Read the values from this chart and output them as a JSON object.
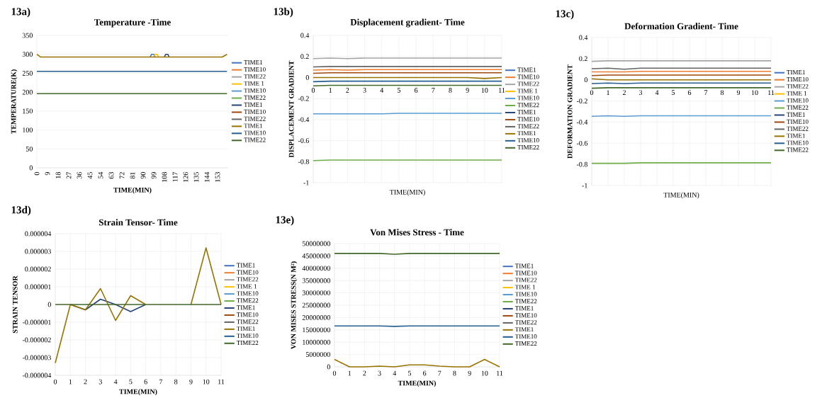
{
  "chart_data": [
    {
      "type": "line",
      "title": "Temperature -Time",
      "xlabel": "TIME(MIN)",
      "ylabel": "TEMPERATURE(K)",
      "annotations": [
        "13a)"
      ],
      "xlim": [
        0,
        162
      ],
      "xticks": [
        0,
        9,
        18,
        27,
        36,
        45,
        54,
        63,
        72,
        81,
        90,
        99,
        108,
        117,
        126,
        135,
        144,
        153
      ],
      "ylim": [
        0,
        350
      ],
      "yticks": [
        0,
        50,
        100,
        150,
        200,
        250,
        300,
        350
      ],
      "grid": "y",
      "legend": "right",
      "series": [
        {
          "name": "TIME1",
          "color": "#4472c4",
          "x": [
            96,
            97,
            99,
            100
          ],
          "values": [
            293,
            300,
            300,
            293
          ]
        },
        {
          "name": "TIME10",
          "color": "#ed7d31",
          "values": [
            null
          ]
        },
        {
          "name": "TIME22",
          "color": "#a5a5a5",
          "values": [
            null
          ]
        },
        {
          "name": "TIME 1",
          "color": "#ffc000",
          "x": [
            99,
            100,
            102,
            103
          ],
          "values": [
            293,
            300,
            300,
            293
          ]
        },
        {
          "name": "TIME10",
          "color": "#5b9bd5",
          "values": [
            null
          ]
        },
        {
          "name": "TIME22",
          "color": "#70ad47",
          "values": [
            null
          ]
        },
        {
          "name": "TIME1",
          "color": "#264478",
          "x": [
            108,
            109,
            111,
            112
          ],
          "values": [
            293,
            300,
            300,
            293
          ]
        },
        {
          "name": "TIME10",
          "color": "#9e480e",
          "values": [
            null
          ]
        },
        {
          "name": "TIME22",
          "color": "#636363",
          "values": [
            null
          ]
        },
        {
          "name": "TIME1",
          "color": "#997300",
          "x": [
            0,
            3,
            157,
            161
          ],
          "values": [
            300,
            293,
            293,
            300
          ]
        },
        {
          "name": "TIME10",
          "color": "#255e91",
          "x": [
            0,
            161
          ],
          "values": [
            255,
            255
          ]
        },
        {
          "name": "TIME22",
          "color": "#43682b",
          "x": [
            0,
            161
          ],
          "values": [
            196,
            196
          ]
        }
      ]
    },
    {
      "type": "line",
      "title": "Displacement gradient- Time",
      "xlabel": "TIME(MIN)",
      "ylabel": "DISPLACEMENT GRADIENT",
      "annotations": [
        "13b)"
      ],
      "categories": [
        "0",
        "1",
        "2",
        "3",
        "4",
        "5",
        "6",
        "7",
        "8",
        "9",
        "10",
        "11"
      ],
      "ylim": [
        -1,
        0.4
      ],
      "yticks": [
        -1,
        -0.8,
        -0.6,
        -0.4,
        -0.2,
        0,
        0.2,
        0.4
      ],
      "grid": true,
      "legend": "right",
      "series": [
        {
          "name": "TIME1",
          "color": "#4472c4",
          "values": [
            null,
            null,
            null,
            null,
            null,
            null,
            null,
            null,
            null,
            null,
            null,
            null
          ]
        },
        {
          "name": "TIME10",
          "color": "#ed7d31",
          "values": [
            0.07,
            0.075,
            0.07,
            0.075,
            0.075,
            0.075,
            0.075,
            0.075,
            0.075,
            0.075,
            0.075,
            0.075
          ]
        },
        {
          "name": "TIME22",
          "color": "#a5a5a5",
          "values": [
            0.18,
            0.185,
            0.18,
            0.185,
            0.185,
            0.185,
            0.185,
            0.185,
            0.185,
            0.185,
            0.185,
            0.185
          ]
        },
        {
          "name": "TIME 1",
          "color": "#ffc000",
          "values": [
            null,
            null,
            null,
            null,
            null,
            null,
            null,
            null,
            null,
            null,
            null,
            null
          ]
        },
        {
          "name": "TIME10",
          "color": "#5b9bd5",
          "values": [
            -0.345,
            -0.345,
            -0.345,
            -0.345,
            -0.345,
            -0.34,
            -0.34,
            -0.34,
            -0.34,
            -0.34,
            -0.34,
            -0.34
          ]
        },
        {
          "name": "TIME22",
          "color": "#70ad47",
          "values": [
            -0.79,
            -0.785,
            -0.785,
            -0.785,
            -0.785,
            -0.785,
            -0.785,
            -0.785,
            -0.785,
            -0.785,
            -0.785,
            -0.785
          ]
        },
        {
          "name": "TIME1",
          "color": "#264478",
          "values": [
            null,
            null,
            null,
            null,
            null,
            null,
            null,
            null,
            null,
            null,
            null,
            null
          ]
        },
        {
          "name": "TIME10",
          "color": "#9e480e",
          "values": [
            0.04,
            0.045,
            0.045,
            0.045,
            0.045,
            0.045,
            0.045,
            0.045,
            0.045,
            0.045,
            0.045,
            0.045
          ]
        },
        {
          "name": "TIME22",
          "color": "#636363",
          "values": [
            0.1,
            0.105,
            0.105,
            0.105,
            0.105,
            0.105,
            0.105,
            0.105,
            0.105,
            0.105,
            0.105,
            0.105
          ]
        },
        {
          "name": "TIME1",
          "color": "#997300",
          "values": [
            0,
            0,
            0,
            0,
            0,
            0,
            0,
            0,
            0,
            0,
            -0.01,
            0
          ]
        },
        {
          "name": "TIME10",
          "color": "#255e91",
          "values": [
            -0.04,
            -0.035,
            -0.035,
            -0.035,
            -0.035,
            -0.035,
            -0.035,
            -0.035,
            -0.035,
            -0.035,
            -0.035,
            -0.035
          ]
        },
        {
          "name": "TIME22",
          "color": "#43682b",
          "values": [
            -0.08,
            -0.075,
            -0.075,
            -0.075,
            -0.075,
            -0.075,
            -0.075,
            -0.075,
            -0.075,
            -0.075,
            -0.075,
            -0.075
          ]
        }
      ]
    },
    {
      "type": "line",
      "title": "Deformation Gradient- Time",
      "xlabel": "TIME(MIN)",
      "ylabel": "DEFORMATION GRADIENT",
      "annotations": [
        "13c)"
      ],
      "categories": [
        "0",
        "1",
        "2",
        "3",
        "4",
        "5",
        "6",
        "7",
        "8",
        "9",
        "10",
        "11"
      ],
      "ylim": [
        -1,
        0.4
      ],
      "yticks": [
        -1,
        -0.8,
        -0.6,
        -0.4,
        -0.2,
        0,
        0.2,
        0.4
      ],
      "grid": true,
      "legend": "right",
      "series": [
        {
          "name": "TIME1",
          "color": "#4472c4",
          "values": [
            null,
            null,
            null,
            null,
            null,
            null,
            null,
            null,
            null,
            null,
            null,
            null
          ]
        },
        {
          "name": "TIME10",
          "color": "#ed7d31",
          "values": [
            0.075,
            0.075,
            0.075,
            0.08,
            0.08,
            0.08,
            0.08,
            0.08,
            0.08,
            0.08,
            0.08,
            0.08
          ]
        },
        {
          "name": "TIME22",
          "color": "#a5a5a5",
          "values": [
            0.175,
            0.18,
            0.18,
            0.18,
            0.18,
            0.18,
            0.18,
            0.18,
            0.18,
            0.18,
            0.18,
            0.18
          ]
        },
        {
          "name": "TIME 1",
          "color": "#ffc000",
          "values": [
            null,
            null,
            null,
            null,
            null,
            null,
            null,
            null,
            null,
            null,
            null,
            null
          ]
        },
        {
          "name": "TIME10",
          "color": "#5b9bd5",
          "values": [
            -0.345,
            -0.34,
            -0.345,
            -0.34,
            -0.34,
            -0.34,
            -0.34,
            -0.34,
            -0.34,
            -0.34,
            -0.34,
            -0.34
          ]
        },
        {
          "name": "TIME22",
          "color": "#70ad47",
          "values": [
            -0.79,
            -0.79,
            -0.79,
            -0.785,
            -0.785,
            -0.785,
            -0.785,
            -0.785,
            -0.785,
            -0.785,
            -0.785,
            -0.785
          ]
        },
        {
          "name": "TIME1",
          "color": "#264478",
          "values": [
            null,
            null,
            null,
            null,
            null,
            null,
            null,
            null,
            null,
            null,
            null,
            null
          ]
        },
        {
          "name": "TIME10",
          "color": "#9e480e",
          "values": [
            0.04,
            0.045,
            0.045,
            0.045,
            0.045,
            0.045,
            0.045,
            0.045,
            0.045,
            0.045,
            0.045,
            0.045
          ]
        },
        {
          "name": "TIME22",
          "color": "#636363",
          "values": [
            0.105,
            0.11,
            0.1,
            0.11,
            0.11,
            0.11,
            0.11,
            0.11,
            0.11,
            0.11,
            0.11,
            0.11
          ]
        },
        {
          "name": "TIME1",
          "color": "#997300",
          "values": [
            0.01,
            0,
            0,
            0,
            0,
            0,
            0,
            0,
            0,
            0,
            0,
            0
          ]
        },
        {
          "name": "TIME10",
          "color": "#255e91",
          "values": [
            -0.035,
            -0.03,
            -0.035,
            -0.03,
            -0.03,
            -0.03,
            -0.03,
            -0.03,
            -0.03,
            -0.03,
            -0.03,
            -0.03
          ]
        },
        {
          "name": "TIME22",
          "color": "#43682b",
          "values": [
            -0.08,
            -0.075,
            -0.075,
            -0.075,
            -0.075,
            -0.075,
            -0.075,
            -0.075,
            -0.075,
            -0.075,
            -0.075,
            -0.075
          ]
        }
      ]
    },
    {
      "type": "line",
      "title": "Strain Tensor- Time",
      "xlabel": "TIME(MIN)",
      "ylabel": "STRAIN TENSOR",
      "annotations": [
        "13d)"
      ],
      "categories": [
        "0",
        "1",
        "2",
        "3",
        "4",
        "5",
        "6",
        "7",
        "8",
        "9",
        "10",
        "11"
      ],
      "ylim": [
        -4e-06,
        4e-06
      ],
      "yticks": [
        {
          "value": -4e-06,
          "label": "-0.000004"
        },
        {
          "value": -3e-06,
          "label": "-0.000003"
        },
        {
          "value": -2e-06,
          "label": "-0.000002"
        },
        {
          "value": -1e-06,
          "label": "-0.000001"
        },
        {
          "value": 0,
          "label": "0"
        },
        {
          "value": 1e-06,
          "label": "0.000001"
        },
        {
          "value": 2e-06,
          "label": "0.000002"
        },
        {
          "value": 3e-06,
          "label": "0.000003"
        },
        {
          "value": 4e-06,
          "label": "0.000004"
        }
      ],
      "grid": true,
      "legend": "right",
      "series": [
        {
          "name": "TIME1",
          "color": "#4472c4",
          "values": [
            null,
            null,
            null,
            null,
            null,
            null,
            null,
            null,
            null,
            null,
            null,
            null
          ]
        },
        {
          "name": "TIME10",
          "color": "#ed7d31",
          "values": [
            null,
            null,
            null,
            null,
            null,
            null,
            null,
            null,
            null,
            null,
            null,
            null
          ]
        },
        {
          "name": "TIME22",
          "color": "#a5a5a5",
          "values": [
            null,
            null,
            null,
            null,
            null,
            null,
            null,
            null,
            null,
            null,
            null,
            null
          ]
        },
        {
          "name": "TIME 1",
          "color": "#ffc000",
          "values": [
            null,
            null,
            null,
            null,
            null,
            null,
            null,
            null,
            null,
            null,
            null,
            null
          ]
        },
        {
          "name": "TIME10",
          "color": "#5b9bd5",
          "values": [
            null,
            null,
            null,
            null,
            null,
            null,
            null,
            null,
            null,
            null,
            null,
            null
          ]
        },
        {
          "name": "TIME22",
          "color": "#70ad47",
          "values": [
            null,
            null,
            null,
            null,
            null,
            null,
            null,
            null,
            null,
            null,
            null,
            null
          ]
        },
        {
          "name": "TIME1",
          "color": "#264478",
          "values": [
            null,
            0,
            -3e-07,
            3e-07,
            0,
            -4e-07,
            0,
            null,
            null,
            null,
            null,
            null
          ]
        },
        {
          "name": "TIME10",
          "color": "#9e480e",
          "values": [
            null,
            null,
            null,
            null,
            null,
            null,
            null,
            null,
            null,
            null,
            null,
            null
          ]
        },
        {
          "name": "TIME22",
          "color": "#636363",
          "values": [
            null,
            null,
            null,
            null,
            null,
            null,
            null,
            null,
            null,
            null,
            null,
            null
          ]
        },
        {
          "name": "TIME1",
          "color": "#997300",
          "values": [
            -3.3e-06,
            0,
            -3e-07,
            9e-07,
            -9e-07,
            5e-07,
            0,
            null,
            null,
            0,
            3.2e-06,
            0
          ]
        },
        {
          "name": "TIME10",
          "color": "#255e91",
          "values": [
            null,
            null,
            null,
            null,
            null,
            null,
            null,
            null,
            null,
            null,
            null,
            null
          ]
        },
        {
          "name": "TIME22",
          "color": "#43682b",
          "values": [
            0,
            0,
            0,
            0,
            0,
            0,
            0,
            0,
            0,
            0,
            0,
            0
          ]
        }
      ]
    },
    {
      "type": "line",
      "title": "Von Mises Stress - Time",
      "xlabel": "TIME(MIN)",
      "ylabel": "VON MISES STRESS(N M²)",
      "annotations": [
        "13e)"
      ],
      "categories": [
        "0",
        "1",
        "2",
        "3",
        "4",
        "5",
        "6",
        "7",
        "8",
        "9",
        "10",
        "11"
      ],
      "ylim": [
        0,
        50000000
      ],
      "yticks": [
        0,
        5000000,
        10000000,
        15000000,
        20000000,
        25000000,
        30000000,
        35000000,
        40000000,
        45000000,
        50000000
      ],
      "grid": true,
      "legend": "right",
      "series": [
        {
          "name": "TIME1",
          "color": "#4472c4",
          "values": [
            null,
            null,
            null,
            null,
            null,
            null,
            null,
            null,
            null,
            null,
            null,
            null
          ]
        },
        {
          "name": "TIME10",
          "color": "#ed7d31",
          "values": [
            null,
            null,
            null,
            null,
            null,
            null,
            null,
            null,
            null,
            null,
            null,
            null
          ]
        },
        {
          "name": "TIME22",
          "color": "#a5a5a5",
          "values": [
            null,
            null,
            null,
            null,
            null,
            null,
            null,
            null,
            null,
            null,
            null,
            null
          ]
        },
        {
          "name": "TIME 1",
          "color": "#ffc000",
          "values": [
            null,
            null,
            null,
            null,
            null,
            null,
            null,
            null,
            null,
            null,
            null,
            null
          ]
        },
        {
          "name": "TIME10",
          "color": "#5b9bd5",
          "values": [
            null,
            null,
            null,
            null,
            null,
            null,
            null,
            null,
            null,
            null,
            null,
            null
          ]
        },
        {
          "name": "TIME22",
          "color": "#70ad47",
          "values": [
            null,
            null,
            null,
            null,
            null,
            null,
            null,
            null,
            null,
            null,
            null,
            null
          ]
        },
        {
          "name": "TIME1",
          "color": "#264478",
          "values": [
            null,
            null,
            null,
            null,
            null,
            null,
            null,
            null,
            null,
            null,
            null,
            null
          ]
        },
        {
          "name": "TIME10",
          "color": "#9e480e",
          "values": [
            null,
            null,
            null,
            null,
            null,
            null,
            null,
            null,
            null,
            null,
            null,
            null
          ]
        },
        {
          "name": "TIME22",
          "color": "#636363",
          "values": [
            null,
            null,
            null,
            null,
            null,
            null,
            null,
            null,
            null,
            null,
            null,
            null
          ]
        },
        {
          "name": "TIME1",
          "color": "#997300",
          "values": [
            3000000,
            0,
            0,
            300000,
            0,
            800000,
            800000,
            300000,
            0,
            0,
            3000000,
            0
          ]
        },
        {
          "name": "TIME10",
          "color": "#255e91",
          "values": [
            16600000,
            16600000,
            16600000,
            16600000,
            16400000,
            16600000,
            16600000,
            16600000,
            16600000,
            16600000,
            16600000,
            16600000
          ]
        },
        {
          "name": "TIME22",
          "color": "#43682b",
          "values": [
            46000000,
            46000000,
            46000000,
            46000000,
            45700000,
            46000000,
            46000000,
            46000000,
            46000000,
            46000000,
            46000000,
            46000000
          ]
        }
      ]
    }
  ]
}
